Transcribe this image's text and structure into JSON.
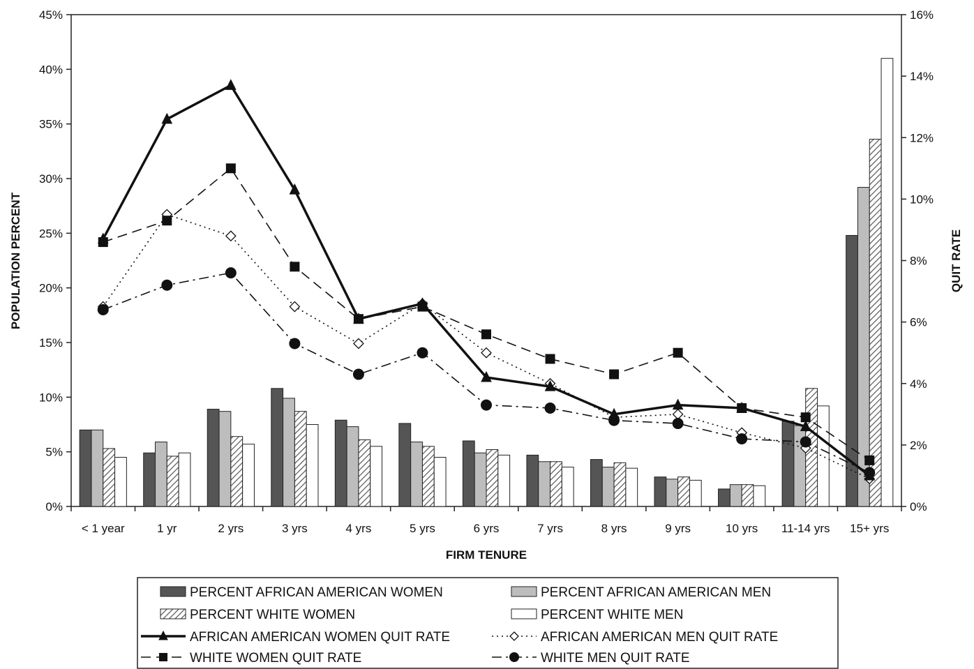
{
  "chart_data": {
    "type": "bar",
    "categories": [
      "< 1 year",
      "1 yr",
      "2 yrs",
      "3 yrs",
      "4 yrs",
      "5 yrs",
      "6 yrs",
      "7 yrs",
      "8 yrs",
      "9 yrs",
      "10 yrs",
      "11-14 yrs",
      "15+ yrs"
    ],
    "xlabel": "FIRM TENURE",
    "ylabel": "POPULATION PERCENT",
    "y2label": "QUIT RATE",
    "ylim": [
      0,
      45
    ],
    "y2lim": [
      0,
      16
    ],
    "yticks": [
      "0%",
      "5%",
      "10%",
      "15%",
      "20%",
      "25%",
      "30%",
      "35%",
      "40%",
      "45%"
    ],
    "y2ticks": [
      "0%",
      "2%",
      "4%",
      "6%",
      "8%",
      "10%",
      "12%",
      "14%",
      "16%"
    ],
    "grid": false,
    "legend_position": "bottom",
    "bar_series": [
      {
        "name": "PERCENT AFRICAN AMERICAN WOMEN",
        "style": "dark",
        "color": "#555555",
        "values": [
          7.0,
          4.9,
          8.9,
          10.8,
          7.9,
          7.6,
          6.0,
          4.7,
          4.3,
          2.7,
          1.6,
          7.8,
          24.8
        ]
      },
      {
        "name": "PERCENT AFRICAN AMERICAN MEN",
        "style": "light",
        "color": "#bdbdbd",
        "values": [
          7.0,
          5.9,
          8.7,
          9.9,
          7.3,
          5.9,
          4.9,
          4.1,
          3.6,
          2.5,
          2.0,
          7.4,
          29.2
        ]
      },
      {
        "name": "PERCENT WHITE WOMEN",
        "style": "hatched",
        "color": "#ffffff",
        "values": [
          5.3,
          4.6,
          6.4,
          8.7,
          6.1,
          5.5,
          5.2,
          4.1,
          4.0,
          2.7,
          2.0,
          10.8,
          33.6
        ]
      },
      {
        "name": "PERCENT WHITE MEN",
        "style": "white",
        "color": "#ffffff",
        "values": [
          4.5,
          4.9,
          5.7,
          7.5,
          5.5,
          4.5,
          4.7,
          3.6,
          3.5,
          2.4,
          1.9,
          9.2,
          41.0
        ]
      }
    ],
    "line_series": [
      {
        "name": "AFRICAN AMERICAN WOMEN QUIT RATE",
        "line": "solid",
        "marker": "triangle",
        "values": [
          8.7,
          12.6,
          13.7,
          10.3,
          6.1,
          6.6,
          4.2,
          3.9,
          3.0,
          3.3,
          3.2,
          2.6,
          1.0
        ]
      },
      {
        "name": "AFRICAN AMERICAN MEN QUIT RATE",
        "line": "dotted",
        "marker": "diamond",
        "values": [
          6.5,
          9.5,
          8.8,
          6.5,
          5.3,
          6.6,
          5.0,
          4.0,
          2.9,
          3.0,
          2.4,
          1.9,
          0.9
        ]
      },
      {
        "name": "WHITE WOMEN QUIT RATE",
        "line": "dashed",
        "marker": "square",
        "values": [
          8.6,
          9.3,
          11.0,
          7.8,
          6.1,
          6.5,
          5.6,
          4.8,
          4.3,
          5.0,
          3.2,
          2.9,
          1.5
        ]
      },
      {
        "name": "WHITE MEN QUIT RATE",
        "line": "dashdot",
        "marker": "circle",
        "values": [
          6.4,
          7.2,
          7.6,
          5.3,
          4.3,
          5.0,
          3.3,
          3.2,
          2.8,
          2.7,
          2.2,
          2.1,
          1.1
        ]
      }
    ]
  }
}
